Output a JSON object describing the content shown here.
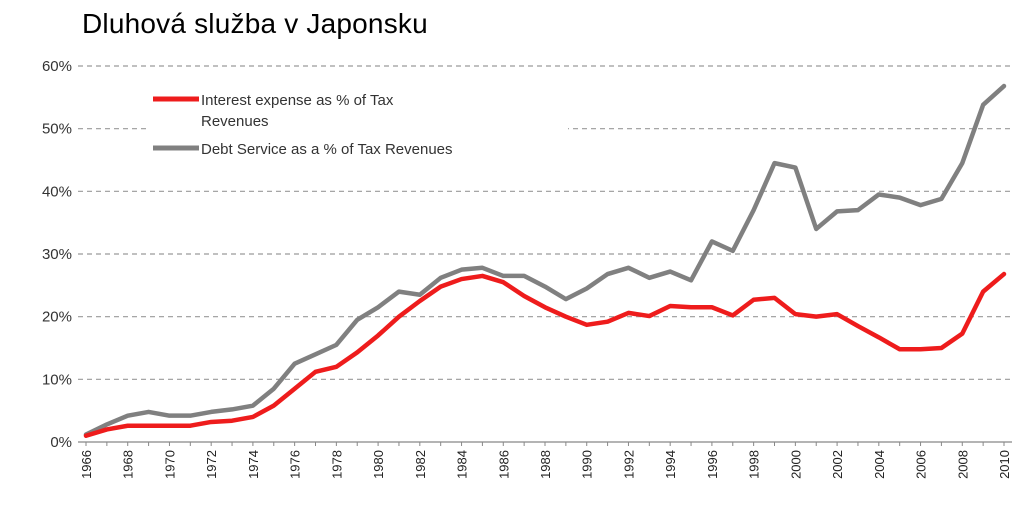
{
  "chart_data": {
    "type": "line",
    "title": "Dluhová služba v Japonsku",
    "xlabel": "",
    "ylabel": "",
    "ylim": [
      0,
      60
    ],
    "y_ticks": [
      "0%",
      "10%",
      "20%",
      "30%",
      "40%",
      "50%",
      "60%"
    ],
    "x_ticks": [
      "1966",
      "1968",
      "1970",
      "1972",
      "1974",
      "1976",
      "1978",
      "1980",
      "1982",
      "1984",
      "1986",
      "1988",
      "1990",
      "1992",
      "1994",
      "1996",
      "1998",
      "2000",
      "2002",
      "2004",
      "2006",
      "2008",
      "2010"
    ],
    "grid": true,
    "legend_position": "top-left",
    "x": [
      1966,
      1967,
      1968,
      1969,
      1970,
      1971,
      1972,
      1973,
      1974,
      1975,
      1976,
      1977,
      1978,
      1979,
      1980,
      1981,
      1982,
      1983,
      1984,
      1985,
      1986,
      1987,
      1988,
      1989,
      1990,
      1991,
      1992,
      1993,
      1994,
      1995,
      1996,
      1997,
      1998,
      1999,
      2000,
      2001,
      2002,
      2003,
      2004,
      2005,
      2006,
      2007,
      2008,
      2009,
      2010
    ],
    "series": [
      {
        "name": "Debt Service as a % of Tax Revenues",
        "legend_lines": [
          "Debt Service as a % of Tax Revenues"
        ],
        "color": "#808080",
        "values": [
          1.2,
          2.8,
          4.2,
          4.8,
          4.2,
          4.2,
          4.8,
          5.2,
          5.8,
          8.5,
          12.5,
          14.0,
          15.5,
          19.5,
          21.5,
          24.0,
          23.5,
          26.2,
          27.5,
          27.8,
          26.5,
          26.5,
          24.8,
          22.8,
          24.5,
          26.8,
          27.8,
          26.2,
          27.2,
          25.8,
          32.0,
          30.5,
          37.0,
          44.5,
          43.8,
          34.0,
          36.8,
          37.0,
          39.5,
          39.0,
          37.8,
          38.8,
          44.5,
          53.8,
          56.8
        ]
      },
      {
        "name": "Interest expense as % of Tax Revenues",
        "legend_lines": [
          "Interest expense as % of Tax",
          "Revenues"
        ],
        "color": "#ee1c1c",
        "values": [
          1.0,
          2.0,
          2.6,
          2.6,
          2.6,
          2.6,
          3.2,
          3.4,
          4.0,
          5.8,
          8.5,
          11.2,
          12.0,
          14.3,
          17.0,
          20.0,
          22.5,
          24.8,
          26.0,
          26.5,
          25.5,
          23.3,
          21.5,
          20.0,
          18.7,
          19.2,
          20.6,
          20.1,
          21.7,
          21.5,
          21.5,
          20.2,
          22.7,
          23.0,
          20.4,
          20.0,
          20.4,
          18.5,
          16.7,
          14.8,
          14.8,
          15.0,
          17.3,
          24.0,
          26.8
        ]
      }
    ]
  }
}
